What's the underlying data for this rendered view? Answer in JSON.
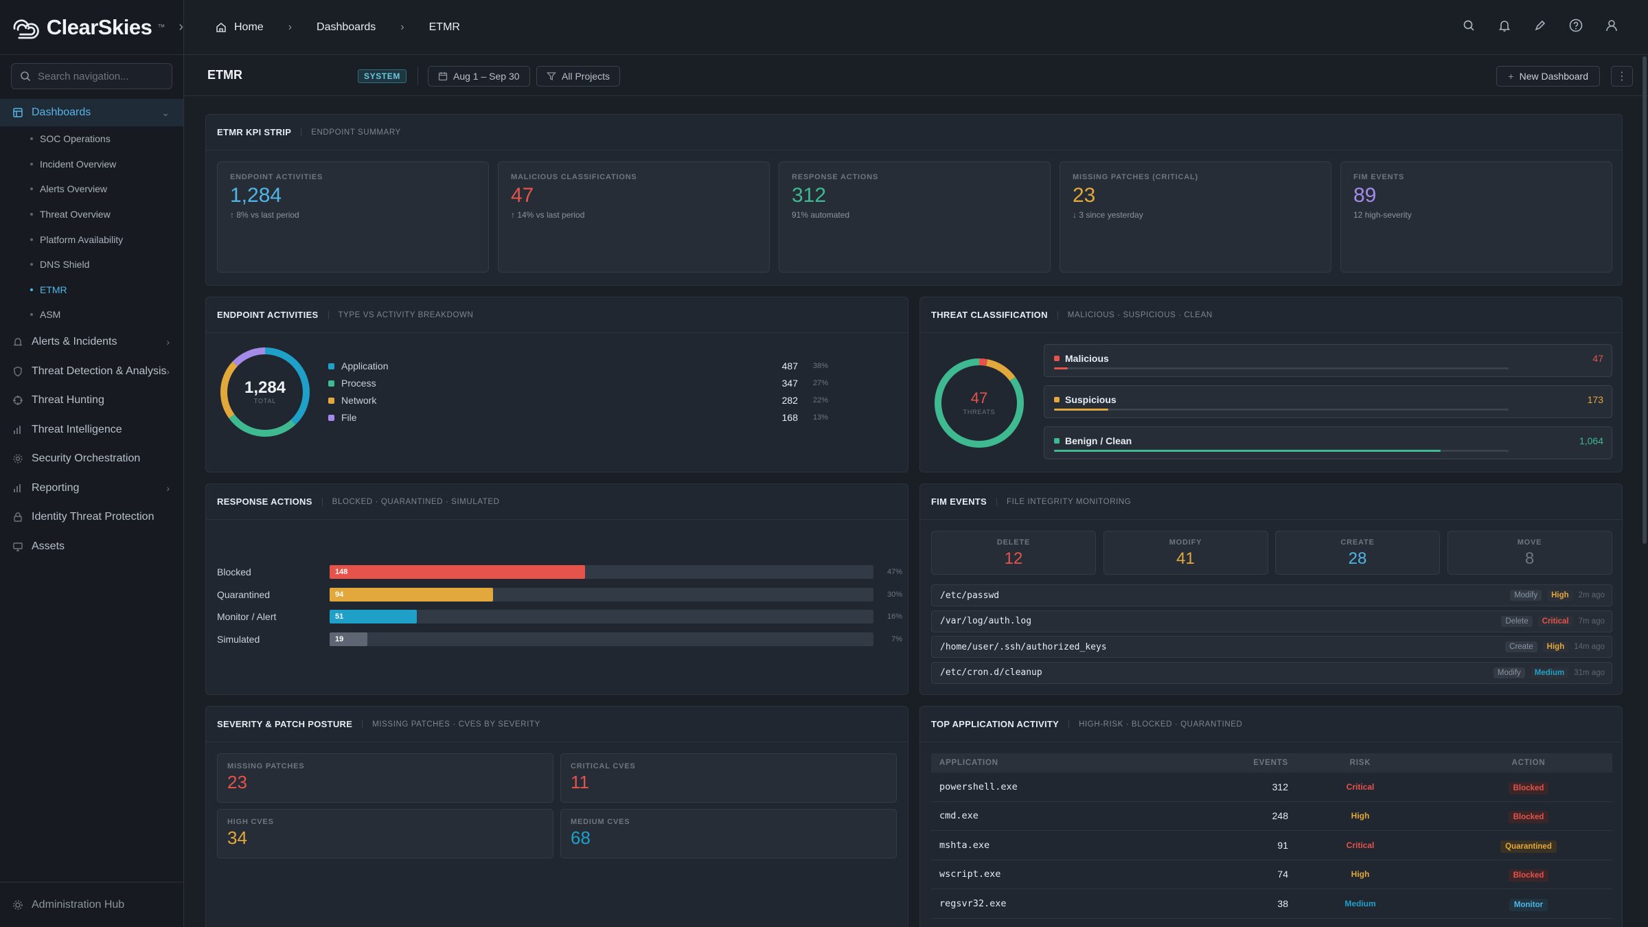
{
  "brand": {
    "name": "ClearSkies",
    "tm": "™"
  },
  "search": {
    "placeholder": "Search navigation..."
  },
  "sidebar": {
    "dashboards": "Dashboards",
    "subs": [
      "SOC Operations",
      "Incident Overview",
      "Alerts Overview",
      "Threat Overview",
      "Platform Availability",
      "DNS Shield",
      "ETMR",
      "ASM"
    ],
    "items": [
      "Alerts & Incidents",
      "Threat Detection & Analysis",
      "Threat Hunting",
      "Threat Intelligence",
      "Security Orchestration",
      "Reporting",
      "Identity Threat Protection",
      "Assets"
    ],
    "footer": "Administration Hub"
  },
  "breadcrumb": [
    "Home",
    "Dashboards",
    "ETMR"
  ],
  "header": {
    "title": "ETMR",
    "badge": "SYSTEM",
    "date_range": "Aug 1 – Sep 30",
    "projects": "All Projects",
    "new_dashboard": "New Dashboard"
  },
  "kpi_panel": {
    "title": "ETMR KPI STRIP",
    "subtitle": "ENDPOINT SUMMARY",
    "cards": [
      {
        "label": "ENDPOINT ACTIVITIES",
        "value": "1,284",
        "sub": "↑ 8% vs last period",
        "color": "#4fb6e8"
      },
      {
        "label": "MALICIOUS CLASSIFICATIONS",
        "value": "47",
        "sub": "↑ 14% vs last period",
        "color": "#e5534b"
      },
      {
        "label": "RESPONSE ACTIONS",
        "value": "312",
        "sub": "91% automated",
        "color": "#3fb990"
      },
      {
        "label": "MISSING PATCHES (CRITICAL)",
        "value": "23",
        "sub": "↓ 3 since yesterday",
        "color": "#e3a83b"
      },
      {
        "label": "FIM EVENTS",
        "value": "89",
        "sub": "12 high-severity",
        "color": "#a48be8"
      }
    ]
  },
  "endpoint": {
    "title": "ENDPOINT ACTIVITIES",
    "subtitle": "TYPE VS ACTIVITY BREAKDOWN",
    "total": "1,284",
    "total_label": "TOTAL",
    "legend": [
      {
        "name": "Application",
        "value": "487",
        "pct": "38%",
        "color": "#1fa0c9",
        "frac": 0.38
      },
      {
        "name": "Process",
        "value": "347",
        "pct": "27%",
        "color": "#3fb990",
        "frac": 0.27
      },
      {
        "name": "Network",
        "value": "282",
        "pct": "22%",
        "color": "#e3a83b",
        "frac": 0.22
      },
      {
        "name": "File",
        "value": "168",
        "pct": "13%",
        "color": "#a48be8",
        "frac": 0.13
      }
    ]
  },
  "threat": {
    "title": "THREAT CLASSIFICATION",
    "subtitle": "MALICIOUS · SUSPICIOUS · CLEAN",
    "total": "47",
    "total_label": "THREATS",
    "rows": [
      {
        "name": "Malicious",
        "value": "47",
        "color": "#e5534b",
        "frac": 0.03
      },
      {
        "name": "Suspicious",
        "value": "173",
        "color": "#e3a83b",
        "frac": 0.12
      },
      {
        "name": "Benign / Clean",
        "value": "1,064",
        "color": "#3fb990",
        "frac": 0.85
      }
    ]
  },
  "response": {
    "title": "RESPONSE ACTIONS",
    "subtitle": "BLOCKED · QUARANTINED · SIMULATED",
    "rows": [
      {
        "name": "Blocked",
        "value": "148",
        "pct": "47%",
        "color": "#e5534b",
        "frac": 0.47
      },
      {
        "name": "Quarantined",
        "value": "94",
        "pct": "30%",
        "color": "#e3a83b",
        "frac": 0.3
      },
      {
        "name": "Monitor / Alert",
        "value": "51",
        "pct": "16%",
        "color": "#1fa0c9",
        "frac": 0.16
      },
      {
        "name": "Simulated",
        "value": "19",
        "pct": "7%",
        "color": "#5d6672",
        "frac": 0.07
      }
    ]
  },
  "fim": {
    "title": "FIM EVENTS",
    "subtitle": "FILE INTEGRITY MONITORING",
    "cards": [
      {
        "label": "DELETE",
        "value": "12",
        "color": "#e5534b"
      },
      {
        "label": "MODIFY",
        "value": "41",
        "color": "#e3a83b"
      },
      {
        "label": "CREATE",
        "value": "28",
        "color": "#4fb6e8"
      },
      {
        "label": "MOVE",
        "value": "8",
        "color": "#6e7681"
      }
    ],
    "rows": [
      {
        "path": "/etc/passwd",
        "op": "Modify",
        "sev": "High",
        "sev_color": "#e3a83b",
        "time": "2m ago"
      },
      {
        "path": "/var/log/auth.log",
        "op": "Delete",
        "sev": "Critical",
        "sev_color": "#e5534b",
        "time": "7m ago"
      },
      {
        "path": "/home/user/.ssh/authorized_keys",
        "op": "Create",
        "sev": "High",
        "sev_color": "#e3a83b",
        "time": "14m ago"
      },
      {
        "path": "/etc/cron.d/cleanup",
        "op": "Modify",
        "sev": "Medium",
        "sev_color": "#1fa0c9",
        "time": "31m ago"
      }
    ]
  },
  "severity": {
    "title": "SEVERITY & PATCH POSTURE",
    "subtitle": "MISSING PATCHES · CVES BY SEVERITY",
    "cards": [
      {
        "label": "MISSING PATCHES",
        "value": "23",
        "color": "#e5534b"
      },
      {
        "label": "CRITICAL CVES",
        "value": "11",
        "color": "#e5534b"
      },
      {
        "label": "HIGH CVES",
        "value": "34",
        "color": "#e3a83b"
      },
      {
        "label": "MEDIUM CVES",
        "value": "68",
        "color": "#1fa0c9"
      }
    ]
  },
  "apps": {
    "title": "TOP APPLICATION ACTIVITY",
    "subtitle": "HIGH-RISK · BLOCKED · QUARANTINED",
    "headers": [
      "APPLICATION",
      "EVENTS",
      "RISK",
      "ACTION"
    ],
    "rows": [
      {
        "app": "powershell.exe",
        "events": "312",
        "risk": "Critical",
        "risk_color": "#e5534b",
        "action": "Blocked",
        "action_color": "#e5534b",
        "action_bg": "#3a2529"
      },
      {
        "app": "cmd.exe",
        "events": "248",
        "risk": "High",
        "risk_color": "#e3a83b",
        "action": "Blocked",
        "action_color": "#e5534b",
        "action_bg": "#3a2529"
      },
      {
        "app": "mshta.exe",
        "events": "91",
        "risk": "Critical",
        "risk_color": "#e5534b",
        "action": "Quarantined",
        "action_color": "#e3a83b",
        "action_bg": "#3a3222"
      },
      {
        "app": "wscript.exe",
        "events": "74",
        "risk": "High",
        "risk_color": "#e3a83b",
        "action": "Blocked",
        "action_color": "#e5534b",
        "action_bg": "#3a2529"
      },
      {
        "app": "regsvr32.exe",
        "events": "38",
        "risk": "Medium",
        "risk_color": "#1fa0c9",
        "action": "Monitor",
        "action_color": "#4fb6e8",
        "action_bg": "#1f3340"
      }
    ]
  }
}
